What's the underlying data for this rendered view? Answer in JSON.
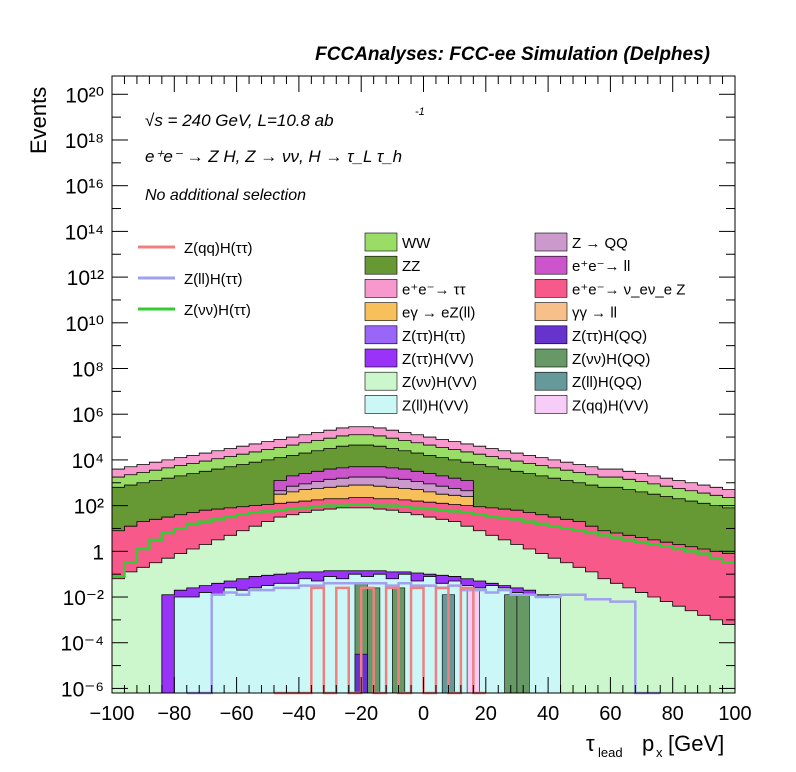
{
  "header": {
    "title": "FCCAnalyses: FCC-ee Simulation (Delphes)",
    "energy_label": "√s = 240 GeV, L=10.8 ab",
    "lumi_exponent": "-1",
    "process_label": "e⁺e⁻ → Z H, Z → νν, H → τ_L τ_h",
    "selection_label": "No additional selection"
  },
  "axes": {
    "ylabel": "Events",
    "xlabel_base": "τ",
    "xlabel_sub": "lead",
    "xlabel_tail": "p",
    "xlabel_sub2": "x",
    "xlabel_unit": "[GeV]",
    "x_ticks": [
      "−100",
      "−80",
      "−60",
      "−40",
      "−20",
      "0",
      "20",
      "40",
      "60",
      "80",
      "100"
    ],
    "y_ticks": [
      "10⁻⁶",
      "10⁻⁴",
      "10⁻²",
      "1",
      "10²",
      "10⁴",
      "10⁶",
      "10⁸",
      "10¹⁰",
      "10¹²",
      "10¹⁴",
      "10¹⁶",
      "10¹⁸",
      "10²⁰"
    ]
  },
  "legend": {
    "signals": [
      {
        "label": "Z(qq)H(ττ)",
        "color": "#f08080"
      },
      {
        "label": "Z(ll)H(ττ)",
        "color": "#a0a0f0"
      },
      {
        "label": "Z(νν)H(ττ)",
        "color": "#33cc33"
      }
    ],
    "backgrounds": [
      {
        "label": "WW",
        "color": "#99dd66"
      },
      {
        "label": "Z → QQ",
        "color": "#cc99cc"
      },
      {
        "label": "ZZ",
        "color": "#669933"
      },
      {
        "label": "e⁺e⁻→ ll",
        "color": "#cc55cc"
      },
      {
        "label": "e⁺e⁻→ ττ",
        "color": "#f799cc"
      },
      {
        "label": "e⁺e⁻→ ν_eν_e Z",
        "color": "#f75a8a"
      },
      {
        "label": "eγ → eZ(ll)",
        "color": "#f7c05a"
      },
      {
        "label": "γγ → ll",
        "color": "#f7c08a"
      },
      {
        "label": "Z(ττ)H(ττ)",
        "color": "#9966f7"
      },
      {
        "label": "Z(ττ)H(QQ)",
        "color": "#6633cc"
      },
      {
        "label": "Z(ττ)H(VV)",
        "color": "#9933f7"
      },
      {
        "label": "Z(νν)H(QQ)",
        "color": "#669966"
      },
      {
        "label": "Z(νν)H(VV)",
        "color": "#ccf7cc"
      },
      {
        "label": "Z(ll)H(QQ)",
        "color": "#669999"
      },
      {
        "label": "Z(ll)H(VV)",
        "color": "#ccf7f7"
      },
      {
        "label": "Z(qq)H(VV)",
        "color": "#f7ccf7"
      }
    ]
  },
  "chart_data": {
    "type": "area",
    "xlim": [
      -100,
      100
    ],
    "ylim_log10": [
      -6.2,
      20.8
    ],
    "log_y": true,
    "bin_width": 4,
    "stack_top_log10": [
      3.6,
      3.7,
      3.8,
      3.9,
      4.0,
      4.1,
      4.2,
      4.3,
      4.4,
      4.5,
      4.6,
      4.7,
      4.8,
      4.9,
      5.0,
      5.1,
      5.2,
      5.3,
      5.4,
      5.45,
      5.45,
      5.4,
      5.3,
      5.2,
      5.1,
      5.0,
      4.9,
      4.8,
      4.7,
      4.6,
      4.5,
      4.4,
      4.3,
      4.2,
      4.1,
      4.0,
      3.9,
      3.8,
      3.7,
      3.6,
      3.6,
      3.5,
      3.4,
      3.3,
      3.2,
      3.1,
      3.0,
      2.9,
      2.8,
      2.7
    ],
    "top_ranges": [
      {
        "process": "WW (stack top band)",
        "color": "#99dd66"
      },
      {
        "process": "e⁺e⁻→ ττ",
        "color": "#f799cc"
      }
    ],
    "inner_bands_log10": {
      "ee_ll_top": [
        null,
        null,
        null,
        null,
        null,
        null,
        null,
        null,
        null,
        null,
        null,
        null,
        null,
        3.1,
        3.3,
        3.4,
        3.5,
        3.6,
        3.65,
        3.7,
        3.7,
        3.7,
        3.65,
        3.6,
        3.5,
        3.4,
        3.3,
        3.2,
        3.1,
        null,
        null,
        null,
        null,
        null,
        null,
        null,
        null,
        null,
        null,
        null,
        null,
        null,
        null,
        null,
        null,
        null,
        null,
        null,
        null,
        null
      ],
      "egamma_top": [
        null,
        null,
        null,
        null,
        null,
        null,
        null,
        null,
        null,
        null,
        null,
        null,
        null,
        2.5,
        2.6,
        2.7,
        2.75,
        2.8,
        2.85,
        2.9,
        2.9,
        2.85,
        2.8,
        2.75,
        2.7,
        2.6,
        2.5,
        2.45,
        2.4,
        null,
        null,
        null,
        null,
        null,
        null,
        null,
        null,
        null,
        null,
        null,
        null,
        null,
        null,
        null,
        null,
        null,
        null,
        null,
        null,
        null
      ],
      "nunuZ_top": [
        0.9,
        1.1,
        1.3,
        1.4,
        1.5,
        1.6,
        1.7,
        1.8,
        1.85,
        1.9,
        1.95,
        2.0,
        2.05,
        2.1,
        2.15,
        2.2,
        2.25,
        2.3,
        2.3,
        2.35,
        2.35,
        2.3,
        2.3,
        2.25,
        2.2,
        2.15,
        2.1,
        2.05,
        2.0,
        1.95,
        1.9,
        1.85,
        1.8,
        1.7,
        1.6,
        1.5,
        1.4,
        1.3,
        1.1,
        0.9,
        0.8,
        0.7,
        0.6,
        0.5,
        0.4,
        0.3,
        0.2,
        0.1,
        0.0,
        -0.1
      ],
      "nunuHVV_top": [
        -1.2,
        -0.9,
        -0.7,
        -0.5,
        -0.3,
        -0.1,
        0.1,
        0.3,
        0.5,
        0.7,
        0.9,
        1.1,
        1.3,
        1.5,
        1.6,
        1.7,
        1.8,
        1.85,
        1.9,
        1.9,
        1.9,
        1.85,
        1.8,
        1.7,
        1.6,
        1.5,
        1.4,
        1.3,
        1.1,
        0.9,
        0.7,
        0.5,
        0.3,
        0.1,
        -0.1,
        -0.3,
        -0.5,
        -0.7,
        -0.9,
        -1.2,
        -1.4,
        -1.6,
        -1.8,
        -2.0,
        -2.2,
        -2.4,
        -2.6,
        -2.8,
        -3.0,
        -3.2
      ],
      "ttHVV_top": [
        null,
        null,
        null,
        null,
        -1.9,
        -1.7,
        -1.6,
        -1.5,
        -1.4,
        -1.3,
        -1.2,
        -1.1,
        -1.05,
        -1.0,
        -0.95,
        -0.9,
        -0.9,
        -0.85,
        -0.85,
        -0.85,
        -0.85,
        -0.85,
        -0.9,
        -0.9,
        -0.95,
        -1.0,
        -1.05,
        -1.1,
        -1.2,
        -1.3,
        -1.4,
        -1.5,
        -1.6,
        -1.7,
        -1.9,
        null,
        null,
        null,
        null,
        null,
        null,
        null,
        null,
        null,
        null,
        null,
        null,
        null,
        null,
        null
      ],
      "llHVV_top": [
        null,
        null,
        null,
        null,
        null,
        -2.0,
        -2.0,
        -1.8,
        -1.9,
        -1.6,
        -1.7,
        -1.6,
        -1.5,
        -1.4,
        -1.4,
        -1.2,
        -1.3,
        -1.1,
        -1.2,
        -1.0,
        -1.1,
        -1.0,
        -1.2,
        -1.0,
        -1.3,
        -1.1,
        -1.4,
        -1.3,
        -1.5,
        -1.6,
        -1.5,
        -1.6,
        -1.8,
        -1.9,
        -2.0,
        -1.9,
        null,
        null,
        null,
        null,
        null,
        null,
        null,
        null,
        null,
        null,
        null,
        null,
        null,
        null
      ]
    },
    "series": [
      {
        "name": "Z(νν)H(ττ)",
        "color": "#33cc33",
        "values_log10": [
          -1.1,
          -0.5,
          0.1,
          0.5,
          0.8,
          1.0,
          1.2,
          1.3,
          1.4,
          1.5,
          1.6,
          1.7,
          1.75,
          1.8,
          1.85,
          1.9,
          1.95,
          2.0,
          2.0,
          2.05,
          2.05,
          2.0,
          2.0,
          1.95,
          1.9,
          1.85,
          1.8,
          1.75,
          1.7,
          1.6,
          1.5,
          1.45,
          1.4,
          1.3,
          1.2,
          1.1,
          1.0,
          0.9,
          0.8,
          0.7,
          0.6,
          0.5,
          0.4,
          0.3,
          0.2,
          0.1,
          0.0,
          -0.1,
          -0.3,
          -0.5
        ]
      },
      {
        "name": "Z(ll)H(ττ)",
        "color": "#a0a0f0",
        "values_log10": [
          null,
          null,
          null,
          null,
          null,
          null,
          -6.2,
          -6.2,
          -1.9,
          -1.8,
          -1.9,
          -1.7,
          -1.7,
          -1.6,
          -1.6,
          -1.5,
          -1.5,
          -1.4,
          -1.4,
          -1.4,
          -1.4,
          -1.4,
          -1.5,
          -1.4,
          -1.5,
          -1.5,
          -1.6,
          -1.5,
          -1.7,
          -1.7,
          -1.8,
          -1.7,
          -1.9,
          -1.9,
          -2.0,
          -2.0,
          -1.9,
          -1.9,
          -2.1,
          -2.1,
          -2.2,
          -2.2,
          -6.2,
          -6.2,
          null,
          null,
          null,
          null,
          null,
          null
        ]
      },
      {
        "name": "Z(qq)H(ττ)",
        "color": "#f08080",
        "values_log10": [
          null,
          null,
          null,
          null,
          null,
          null,
          null,
          null,
          null,
          null,
          null,
          null,
          null,
          -6.2,
          -6.2,
          -6.2,
          -1.6,
          -6.2,
          -1.6,
          -6.2,
          -1.6,
          -6.2,
          -1.6,
          -6.2,
          -1.6,
          -6.2,
          -1.6,
          -6.2,
          -1.6,
          -6.2,
          null,
          null,
          null,
          null,
          null,
          null,
          null,
          null,
          null,
          null,
          null,
          null,
          null,
          null,
          null,
          null,
          null,
          null,
          null,
          null
        ]
      }
    ]
  }
}
